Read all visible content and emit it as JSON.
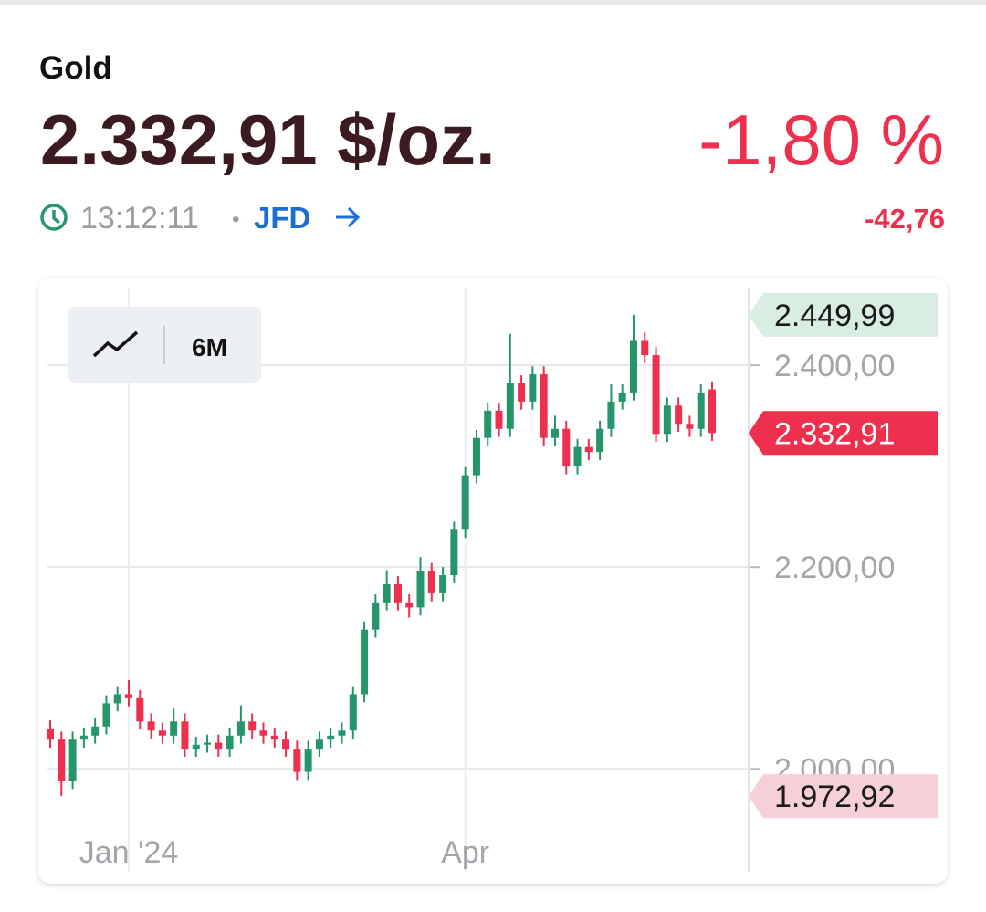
{
  "header": {
    "title": "Gold",
    "price": "2.332,91 $/oz.",
    "change_percent": "-1,80 %",
    "time": "13:12:11",
    "separator": "•",
    "source": "JFD",
    "change": "-42,76"
  },
  "controls": {
    "range": "6M"
  },
  "chart_data": {
    "type": "candlestick",
    "categories": [
      null,
      null,
      null,
      null,
      null,
      null,
      null,
      "Jan '24",
      null,
      null,
      null,
      null,
      null,
      null,
      null,
      null,
      null,
      null,
      null,
      null,
      null,
      null,
      null,
      null,
      null,
      null,
      null,
      null,
      null,
      null,
      null,
      null,
      null,
      null,
      null,
      null,
      null,
      "Apr",
      null,
      null,
      null,
      null,
      null,
      null,
      null,
      null,
      null,
      null,
      null,
      null,
      null,
      null,
      null,
      null,
      null,
      null,
      null,
      null,
      null,
      null
    ],
    "open": [
      2040,
      2029,
      1988,
      2029,
      2033,
      2042,
      2065,
      2074,
      2070,
      2047,
      2038,
      2033,
      2047,
      2020,
      2024,
      2026,
      2020,
      2033,
      2047,
      2038,
      2033,
      2029,
      2020,
      1997,
      2020,
      2029,
      2033,
      2038,
      2074,
      2138,
      2165,
      2183,
      2165,
      2160,
      2196,
      2174,
      2192,
      2237,
      2291,
      2328,
      2355,
      2337,
      2382,
      2364,
      2391,
      2328,
      2337,
      2300,
      2319,
      2314,
      2337,
      2364,
      2373,
      2425,
      2410,
      2332,
      2360,
      2342,
      2337,
      2376
    ],
    "high": [
      2048,
      2037,
      2037,
      2041,
      2050,
      2073,
      2082,
      2088,
      2078,
      2055,
      2046,
      2060,
      2055,
      2032,
      2034,
      2034,
      2041,
      2063,
      2055,
      2046,
      2041,
      2037,
      2028,
      2028,
      2037,
      2041,
      2046,
      2082,
      2146,
      2173,
      2197,
      2191,
      2173,
      2210,
      2204,
      2200,
      2245,
      2299,
      2336,
      2363,
      2363,
      2431,
      2390,
      2399,
      2399,
      2350,
      2345,
      2327,
      2327,
      2345,
      2381,
      2381,
      2449.99,
      2433,
      2418,
      2368,
      2368,
      2350,
      2381,
      2384
    ],
    "low": [
      2021,
      1972.92,
      1980,
      2021,
      2025,
      2034,
      2057,
      2062,
      2039,
      2030,
      2025,
      2025,
      2012,
      2012,
      2016,
      2012,
      2012,
      2025,
      2030,
      2025,
      2021,
      2012,
      1989,
      1989,
      2012,
      2021,
      2025,
      2030,
      2066,
      2130,
      2157,
      2157,
      2150,
      2152,
      2166,
      2166,
      2184,
      2229,
      2283,
      2320,
      2329,
      2329,
      2356,
      2356,
      2320,
      2320,
      2292,
      2292,
      2306,
      2306,
      2329,
      2356,
      2365,
      2402,
      2324,
      2324,
      2334,
      2329,
      2329,
      2325
    ],
    "close": [
      2029,
      1988,
      2029,
      2033,
      2042,
      2065,
      2074,
      2070,
      2047,
      2038,
      2033,
      2047,
      2020,
      2024,
      2026,
      2020,
      2033,
      2047,
      2038,
      2033,
      2029,
      2020,
      1997,
      2020,
      2029,
      2033,
      2038,
      2074,
      2138,
      2165,
      2183,
      2165,
      2160,
      2196,
      2174,
      2192,
      2237,
      2291,
      2328,
      2355,
      2337,
      2382,
      2364,
      2391,
      2328,
      2337,
      2300,
      2319,
      2314,
      2337,
      2364,
      2373,
      2425,
      2410,
      2332,
      2360,
      2342,
      2337,
      2373,
      2332.91
    ],
    "up_color": "#26966a",
    "down_color": "#ee2f4d",
    "ylim": [
      1898,
      2477
    ],
    "yticks": [
      {
        "value": 2000,
        "label": "2.000,00"
      },
      {
        "value": 2200,
        "label": "2.200,00"
      },
      {
        "value": 2400,
        "label": "2.400,00"
      }
    ],
    "grid": true,
    "price_markers": [
      {
        "value": 2449.99,
        "label": "2.449,99",
        "color": "#d9eee2",
        "text_color": "#1a1a1a"
      },
      {
        "value": 2332.91,
        "label": "2.332,91",
        "color": "#ee2f4d",
        "text_color": "#ffffff"
      },
      {
        "value": 1972.92,
        "label": "1.972,92",
        "color": "#f6d0d7",
        "text_color": "#1a1a1a"
      }
    ]
  }
}
